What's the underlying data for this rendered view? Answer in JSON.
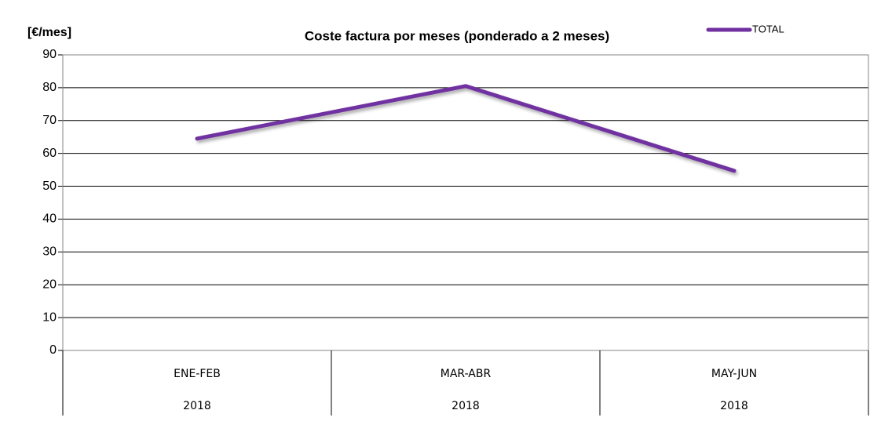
{
  "chart_data": {
    "type": "line",
    "title": "Coste factura por meses (ponderado a 2 meses)",
    "y_label": "[€/mes]",
    "categories": [
      "ENE-FEB",
      "MAR-ABR",
      "MAY-JUN"
    ],
    "category_years": [
      "2018",
      "2018",
      "2018"
    ],
    "series": [
      {
        "name": "TOTAL",
        "color": "#7030a0",
        "values": [
          64.5,
          80.5,
          54.7
        ]
      }
    ],
    "ylim": [
      0,
      90
    ],
    "yticks": [
      0,
      10,
      20,
      30,
      40,
      50,
      60,
      70,
      80,
      90
    ],
    "grid": true,
    "legend": "top-right"
  }
}
